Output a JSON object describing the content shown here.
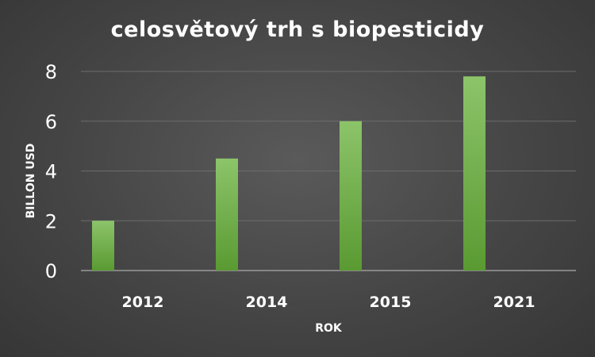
{
  "chart_data": {
    "type": "bar",
    "title": "celosvětový trh s biopesticidy",
    "xlabel": "ROK",
    "ylabel": "BILLON USD",
    "categories": [
      "2012",
      "2014",
      "2015",
      "2021"
    ],
    "values": [
      2,
      4.5,
      6,
      7.8
    ],
    "ylim": [
      0,
      8
    ],
    "yticks": [
      0,
      2,
      4,
      6,
      8
    ],
    "grid": true,
    "legend": "none",
    "colors": {
      "bar_top": "#8cc46a",
      "bar_bottom": "#5a9a32",
      "grid": "#6c6c6c",
      "axis": "#9a9a9a",
      "text": "#ffffff"
    }
  }
}
